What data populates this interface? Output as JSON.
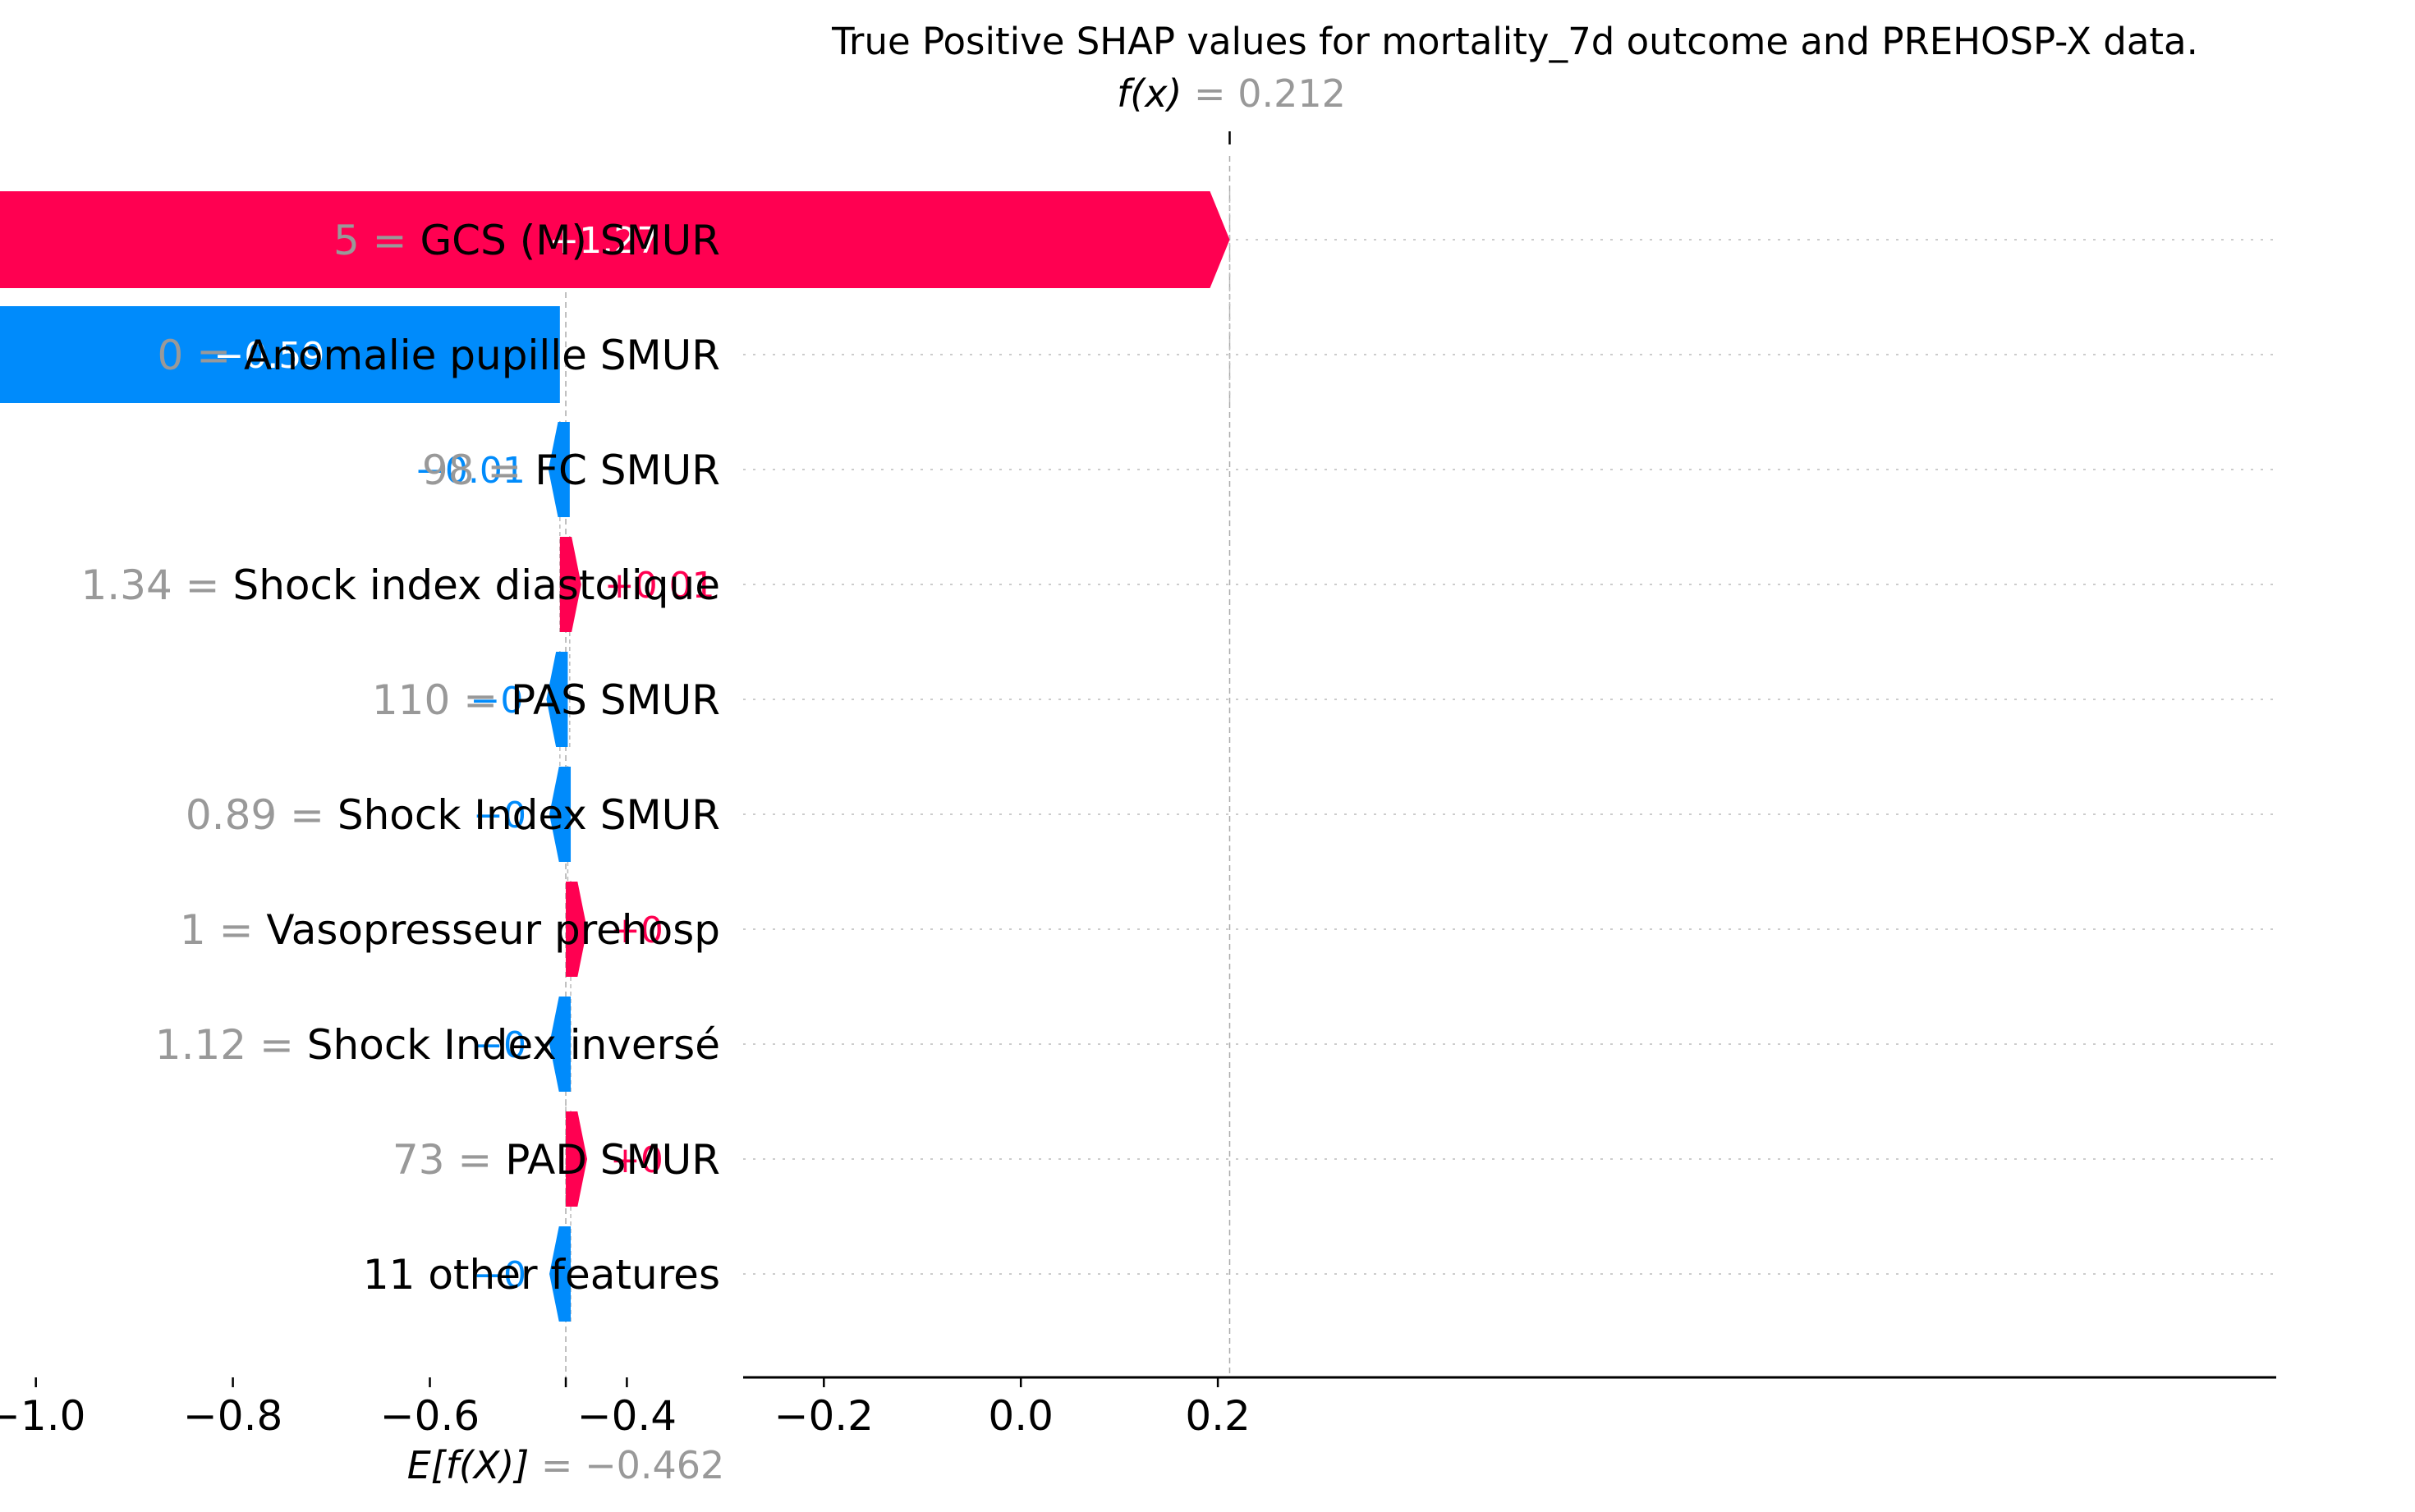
{
  "chart_data": {
    "type": "waterfall",
    "title": "True Positive SHAP values for mortality_7d outcome and PREHOSP-X data.",
    "base_value": -0.462,
    "output_value": 0.212,
    "base_label": {
      "symbol": "E[f(X)]",
      "value_text": "= −0.462"
    },
    "output_label": {
      "symbol": "f(x)",
      "value_text": "= 0.212"
    },
    "xlim": [
      -1.27,
      0.29
    ],
    "xticks": [
      -1.2,
      -1.0,
      -0.8,
      -0.6,
      -0.4,
      -0.2,
      0.0,
      0.2
    ],
    "xtick_labels": [
      "−1.2",
      "−1.0",
      "−0.8",
      "−0.6",
      "−0.4",
      "−0.2",
      "0.0",
      "0.2"
    ],
    "colors": {
      "positive": "#ff0051",
      "negative": "#008bfb",
      "muted": "#999999"
    },
    "features": [
      {
        "value": "5",
        "name": "GCS (M) SMUR",
        "contribution": 1.27,
        "label": "+1.27",
        "start": -1.058,
        "end": 0.212
      },
      {
        "value": "0",
        "name": "Anomalie pupille SMUR",
        "contribution": -0.59,
        "label": "−0.59",
        "start": -0.468,
        "end": -1.058
      },
      {
        "value": "98",
        "name": "FC SMUR",
        "contribution": -0.01,
        "label": "−0.01",
        "start": -0.458,
        "end": -0.468
      },
      {
        "value": "1.34",
        "name": "Shock index diastolique",
        "contribution": 0.01,
        "label": "+0.01",
        "start": -0.468,
        "end": -0.458
      },
      {
        "value": "110",
        "name": "PAS  SMUR",
        "contribution": -0.0,
        "label": "−0",
        "start": -0.46,
        "end": -0.468
      },
      {
        "value": "0.89",
        "name": "Shock Index SMUR",
        "contribution": -0.0,
        "label": "−0",
        "start": -0.457,
        "end": -0.46
      },
      {
        "value": "1",
        "name": "Vasopresseur prehosp",
        "contribution": 0.0,
        "label": "+0",
        "start": -0.462,
        "end": -0.457
      },
      {
        "value": "1.12",
        "name": "Shock Index inversé",
        "contribution": -0.0,
        "label": "−0",
        "start": -0.457,
        "end": -0.462
      },
      {
        "value": "73",
        "name": "PAD  SMUR",
        "contribution": 0.0,
        "label": "+0",
        "start": -0.462,
        "end": -0.457
      },
      {
        "value": "",
        "name": "11 other features",
        "contribution": -0.0,
        "label": "−0",
        "start": -0.457,
        "end": -0.462
      }
    ]
  }
}
